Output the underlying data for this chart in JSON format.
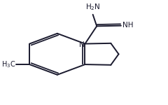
{
  "bg_color": "#ffffff",
  "line_color": "#1a1a2e",
  "text_color": "#1a1a2e",
  "figsize": [
    2.4,
    1.5
  ],
  "dpi": 100
}
